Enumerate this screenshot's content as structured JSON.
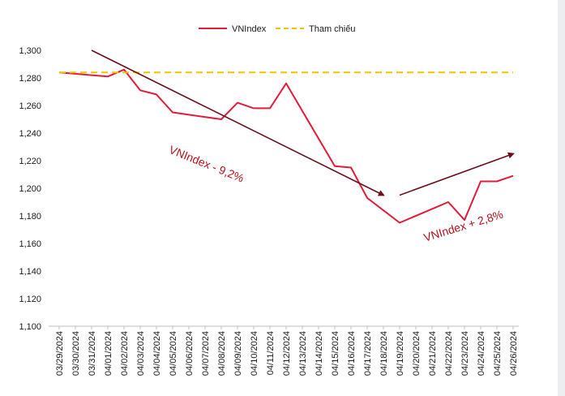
{
  "chart_data": {
    "type": "line",
    "title": "",
    "xlabel": "",
    "ylabel": "",
    "ylim": [
      1100,
      1300
    ],
    "yticks": [
      1100,
      1120,
      1140,
      1160,
      1180,
      1200,
      1220,
      1240,
      1260,
      1280,
      1300
    ],
    "ytick_labels": [
      "1,100",
      "1,120",
      "1,140",
      "1,160",
      "1,180",
      "1,200",
      "1,220",
      "1,240",
      "1,260",
      "1,280",
      "1,300"
    ],
    "categories": [
      "03/29/2024",
      "03/30/2024",
      "03/31/2024",
      "04/01/2024",
      "04/02/2024",
      "04/03/2024",
      "04/04/2024",
      "04/05/2024",
      "04/06/2024",
      "04/07/2024",
      "04/08/2024",
      "04/09/2024",
      "04/10/2024",
      "04/11/2024",
      "04/12/2024",
      "04/13/2024",
      "04/14/2024",
      "04/15/2024",
      "04/16/2024",
      "04/17/2024",
      "04/18/2024",
      "04/19/2024",
      "04/20/2024",
      "04/21/2024",
      "04/22/2024",
      "04/23/2024",
      "04/24/2024",
      "04/25/2024",
      "04/26/2024"
    ],
    "series": [
      {
        "name": "VNIndex",
        "color": "#e31b3a",
        "style": "solid",
        "points": [
          {
            "x": "03/29/2024",
            "y": 1284
          },
          {
            "x": "04/01/2024",
            "y": 1281
          },
          {
            "x": "04/02/2024",
            "y": 1286
          },
          {
            "x": "04/03/2024",
            "y": 1271
          },
          {
            "x": "04/04/2024",
            "y": 1268
          },
          {
            "x": "04/05/2024",
            "y": 1255
          },
          {
            "x": "04/08/2024",
            "y": 1250
          },
          {
            "x": "04/09/2024",
            "y": 1262
          },
          {
            "x": "04/10/2024",
            "y": 1258
          },
          {
            "x": "04/11/2024",
            "y": 1258
          },
          {
            "x": "04/12/2024",
            "y": 1276
          },
          {
            "x": "04/15/2024",
            "y": 1216
          },
          {
            "x": "04/16/2024",
            "y": 1215
          },
          {
            "x": "04/17/2024",
            "y": 1193
          },
          {
            "x": "04/19/2024",
            "y": 1175
          },
          {
            "x": "04/22/2024",
            "y": 1190
          },
          {
            "x": "04/23/2024",
            "y": 1177
          },
          {
            "x": "04/24/2024",
            "y": 1205
          },
          {
            "x": "04/25/2024",
            "y": 1205
          },
          {
            "x": "04/26/2024",
            "y": 1209
          }
        ]
      },
      {
        "name": "Tham chiếu",
        "color": "#f5c100",
        "style": "dashed",
        "points": [
          {
            "x": "03/29/2024",
            "y": 1284
          },
          {
            "x": "04/26/2024",
            "y": 1284
          }
        ]
      }
    ],
    "legend": {
      "position": "top-center",
      "entries": [
        "VNIndex",
        "Tham chiếu"
      ]
    },
    "trend_arrows": [
      {
        "name": "down-trend",
        "color": "#6b0f1a",
        "from": {
          "x": "03/31/2024",
          "y": 1300
        },
        "to": {
          "x": "04/18/2024",
          "y": 1195
        }
      },
      {
        "name": "up-trend",
        "color": "#6b0f1a",
        "from": {
          "x": "04/19/2024",
          "y": 1195
        },
        "to": {
          "x": "04/26/2024",
          "y": 1225
        }
      }
    ],
    "annotations": [
      {
        "text": "VNIndex - 9,2%",
        "color": "#b5121b",
        "anchor": {
          "x": "04/07/2024",
          "y": 1215
        },
        "rotation": 22
      },
      {
        "text": "VNIndex + 2,8%",
        "color": "#b5121b",
        "anchor": {
          "x": "04/23/2024",
          "y": 1170
        },
        "rotation": -17
      }
    ],
    "grid": false
  }
}
